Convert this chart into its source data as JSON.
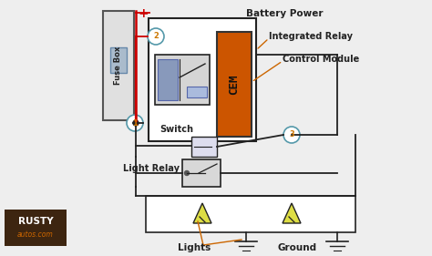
{
  "bg_color": "#f0f0f0",
  "labels": {
    "battery_power": "Battery Power",
    "integrated_relay": "Integrated Relay",
    "control_module": "Control Module",
    "fuse_box": "Fuse Box",
    "switch": "Switch",
    "light_relay": "Light Relay",
    "lights": "Lights",
    "ground": "Ground",
    "plus": "+",
    "cem": "CEM",
    "rusty": "RUSTY",
    "autos": "autos.com"
  },
  "colors": {
    "wire_black": "#222222",
    "wire_red": "#cc0000",
    "wire_orange": "#cc6600",
    "text_black": "#111111",
    "circle_outline": "#5599aa",
    "circle_fill": "#ffffff",
    "circle_number": "#cc7700",
    "fuse_box_fill": "#e0e0e0",
    "fuse_box_border": "#555555",
    "relay_fill": "#e8e8e8",
    "relay_border": "#333333",
    "cem_fill": "#cc5500",
    "cem_text": "#cc5500",
    "rusty_box": "#3d2510",
    "rusty_text": "#ffffff",
    "autos_text": "#cc6600",
    "light_fill": "#dddd44",
    "bg": "#eeeeee"
  }
}
